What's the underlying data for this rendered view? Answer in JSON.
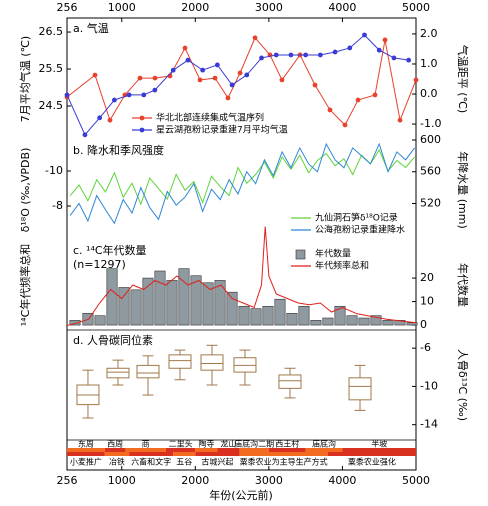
{
  "x_axis": {
    "title": "年份(公元前)",
    "xlim": [
      256,
      5000
    ],
    "xticks": [
      256,
      1000,
      2000,
      3000,
      4000,
      5000
    ]
  },
  "chart_data": [
    {
      "type": "line",
      "title": "a. 气温",
      "ylabel": "7月平均气温 (℃)",
      "y2label": "气温距平 (℃)",
      "ylim": [
        23.58,
        26.88
      ],
      "yticks": [
        24.5,
        25.5,
        26.5
      ],
      "y2lim": [
        -1.53,
        2.53
      ],
      "y2ticks": [
        {
          "value": -1,
          "label": "-1.0"
        },
        {
          "value": 0,
          "label": "0.0"
        },
        {
          "value": 1,
          "label": "1.0"
        },
        {
          "value": 2,
          "label": "2.0"
        }
      ],
      "legend": "lower left",
      "marker": "circle",
      "series": [
        {
          "name": "华北北部连续集成气温序列",
          "color": "#e8412c",
          "axis": "y2",
          "x": [
            256,
            637,
            840,
            1044,
            1248,
            1452,
            1656,
            1860,
            2064,
            2268,
            2444,
            2608,
            2812,
            3015,
            3178,
            3423,
            3627,
            3831,
            4035,
            4212,
            4443,
            4579,
            4783,
            5000
          ],
          "values": [
            -0.1,
            0.63,
            -0.87,
            -0.03,
            0.53,
            0.53,
            0.6,
            1.53,
            0.47,
            0.53,
            -0.13,
            0.7,
            1.87,
            1.3,
            0.47,
            1.3,
            0.3,
            -0.53,
            -1.03,
            -0.2,
            -0.03,
            1.8,
            -0.87,
            0.47
          ]
        },
        {
          "name": "星云湖孢粉记录重建7月平均气温",
          "color": "#3a3ad6",
          "x": [
            256,
            500,
            700,
            900,
            1100,
            1300,
            1450,
            1700,
            1900,
            2100,
            2300,
            2500,
            2700,
            2900,
            3100,
            3300,
            3500,
            3700,
            3900,
            4100,
            4300,
            4500,
            4700,
            4900
          ],
          "values": [
            24.8,
            23.72,
            24.18,
            24.66,
            24.8,
            24.8,
            24.93,
            25.47,
            25.74,
            25.47,
            25.61,
            25.07,
            25.34,
            25.8,
            25.88,
            25.88,
            25.88,
            25.88,
            25.96,
            26.07,
            26.42,
            26.01,
            25.8,
            25.74
          ]
        }
      ]
    },
    {
      "type": "line",
      "title": "b. 降水和季风强度",
      "ylabel": "δ¹⁸O (‰,VPDB)",
      "y2label": "年降水量 (mm)",
      "ylim": [
        -6.06,
        -11.77
      ],
      "yticks": [
        -10,
        -8
      ],
      "y2lim": [
        474,
        600
      ],
      "y2ticks": [
        520,
        560,
        600
      ],
      "legend": "lower right",
      "x": [
        300,
        420,
        540,
        660,
        780,
        900,
        1020,
        1140,
        1260,
        1380,
        1500,
        1620,
        1740,
        1860,
        1980,
        2100,
        2220,
        2340,
        2460,
        2580,
        2700,
        2820,
        2940,
        3060,
        3180,
        3300,
        3420,
        3540,
        3660,
        3780,
        3900,
        4020,
        4140,
        4260,
        4380,
        4500,
        4620,
        4740,
        4860,
        4980
      ],
      "series": [
        {
          "name": "九仙洞石笋δ¹⁸O记录",
          "color": "#5fd43a",
          "values": [
            -8.6,
            -9.2,
            -8.3,
            -9.5,
            -8.8,
            -9.9,
            -8.5,
            -9.3,
            -8.1,
            -9.6,
            -9.0,
            -8.4,
            -9.8,
            -8.9,
            -9.4,
            -8.2,
            -9.7,
            -9.1,
            -8.6,
            -10.2,
            -9.3,
            -9.8,
            -10.5,
            -9.6,
            -10.8,
            -10.1,
            -10.9,
            -9.9,
            -10.6,
            -11.0,
            -10.3,
            -10.7,
            -9.8,
            -10.9,
            -10.4,
            -11.2,
            -10.0,
            -10.6,
            -10.2,
            -10.8
          ]
        },
        {
          "name": "公海孢粉记录重建降水",
          "color": "#2f86d6",
          "axis": "y2",
          "values": [
            505,
            520,
            498,
            530,
            512,
            495,
            525,
            508,
            540,
            515,
            500,
            535,
            518,
            528,
            545,
            510,
            538,
            525,
            550,
            532,
            560,
            545,
            575,
            555,
            585,
            565,
            590,
            570,
            560,
            595,
            575,
            565,
            590,
            580,
            570,
            595,
            560,
            585,
            575,
            590
          ]
        }
      ]
    },
    {
      "type": "bar",
      "title": "c. ¹⁴C年代数量",
      "note": "(n=1297)",
      "ylabel": "¹⁴C年代频率总和",
      "y2label": "年代数量",
      "ylim": [
        0,
        1
      ],
      "y2lim": [
        -2.1,
        36.2
      ],
      "y2ticks": [
        0,
        10,
        20
      ],
      "legend": "upper right",
      "series": [
        {
          "name": "年代数量",
          "type": "bar",
          "color": "#8e9aa0",
          "axis": "y2",
          "x": [
            365,
            541,
            705,
            868,
            1031,
            1194,
            1357,
            1520,
            1683,
            1846,
            2010,
            2173,
            2336,
            2499,
            2662,
            2825,
            2988,
            3151,
            3314,
            3477,
            3640,
            3803,
            3967,
            4130,
            4293,
            4456,
            4619,
            4782,
            4946
          ],
          "values": [
            2,
            5,
            4,
            24,
            16,
            15,
            20,
            23,
            19,
            24,
            21,
            18,
            19,
            14,
            8,
            7,
            8,
            11,
            5,
            8,
            2,
            3,
            8,
            4,
            3,
            4,
            2,
            2,
            1
          ]
        },
        {
          "name": "年代频率总和",
          "type": "line",
          "color": "#e0201b",
          "x": [
            256,
            400,
            550,
            700,
            850,
            1000,
            1150,
            1300,
            1450,
            1600,
            1750,
            1900,
            2050,
            2200,
            2350,
            2500,
            2650,
            2800,
            2900,
            2950,
            3000,
            3100,
            3250,
            3400,
            3550,
            3700,
            3850,
            4000,
            4200,
            4400,
            4600,
            4800,
            5000
          ],
          "values": [
            0.05,
            0.08,
            0.12,
            0.3,
            0.45,
            0.35,
            0.5,
            0.45,
            0.55,
            0.5,
            0.6,
            0.5,
            0.55,
            0.45,
            0.5,
            0.35,
            0.3,
            0.25,
            0.5,
            1.15,
            0.6,
            0.4,
            0.35,
            0.3,
            0.28,
            0.3,
            0.2,
            0.25,
            0.18,
            0.15,
            0.12,
            0.1,
            0.08
          ]
        }
      ]
    },
    {
      "type": "box",
      "title": "d. 人骨碳同位素",
      "ylabel": "人骨δ¹³C (‰)",
      "yaxis_side": "right",
      "ylim": [
        -15.6,
        -4.1
      ],
      "yticks": [
        -14,
        -10,
        -6
      ],
      "color": "#a0784a",
      "x": [
        541,
        949,
        1357,
        1792,
        2227,
        2675,
        3287,
        4239
      ],
      "whislo": [
        -13.3,
        -9.85,
        -10.9,
        -9.3,
        -9.85,
        -9.85,
        -11.2,
        -12.5
      ],
      "q1": [
        -11.9,
        -9.1,
        -9.1,
        -8.1,
        -8.3,
        -8.5,
        -10.2,
        -11.4
      ],
      "med": [
        -10.9,
        -8.5,
        -8.6,
        -7.3,
        -7.6,
        -7.8,
        -9.4,
        -10.0
      ],
      "q3": [
        -9.85,
        -8.1,
        -7.8,
        -6.7,
        -6.7,
        -7.0,
        -8.8,
        -9.1
      ],
      "whishi": [
        -8.3,
        -7.25,
        -6.8,
        -6.2,
        -5.7,
        -6.2,
        -8.1,
        -7.8
      ]
    },
    {
      "type": "timeline",
      "colors": [
        "#f26b21",
        "#d9301f"
      ],
      "rows": [
        {
          "labels": [
            "东周",
            "西周",
            "商",
            "二里头",
            "陶寺",
            "龙山",
            "庙底沟二期",
            "西王村",
            "庙底沟",
            "半坡"
          ],
          "starts": [
            256,
            770,
            1050,
            1600,
            2000,
            2300,
            2600,
            3000,
            3500,
            4000
          ],
          "ends": [
            770,
            1050,
            1600,
            2000,
            2300,
            2600,
            3000,
            3500,
            4000,
            5000
          ]
        },
        {
          "labels": [
            "小麦推广",
            "冶铁",
            "六畜和文字",
            "五谷",
            "古城兴起",
            "粟黍农业为主导生产方式",
            "粟黍农业强化"
          ],
          "starts": [
            256,
            770,
            1100,
            1700,
            2000,
            2600,
            3800
          ],
          "ends": [
            770,
            1100,
            1700,
            2000,
            2600,
            3800,
            5000
          ]
        }
      ]
    }
  ]
}
